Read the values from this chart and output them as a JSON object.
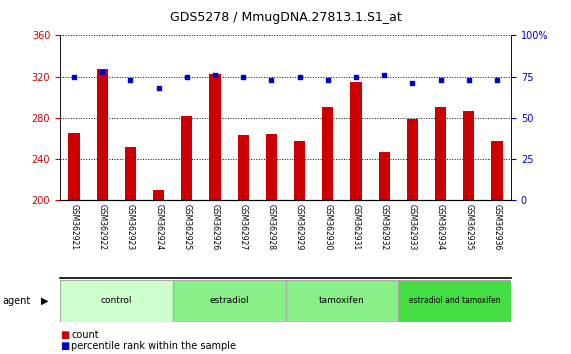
{
  "title": "GDS5278 / MmugDNA.27813.1.S1_at",
  "samples": [
    "GSM362921",
    "GSM362922",
    "GSM362923",
    "GSM362924",
    "GSM362925",
    "GSM362926",
    "GSM362927",
    "GSM362928",
    "GSM362929",
    "GSM362930",
    "GSM362931",
    "GSM362932",
    "GSM362933",
    "GSM362934",
    "GSM362935",
    "GSM362936"
  ],
  "counts": [
    265,
    327,
    252,
    210,
    282,
    322,
    263,
    264,
    257,
    290,
    315,
    247,
    279,
    290,
    287,
    257
  ],
  "percentiles": [
    75,
    78,
    73,
    68,
    75,
    76,
    75,
    73,
    75,
    73,
    75,
    76,
    71,
    73,
    73,
    73
  ],
  "bar_color": "#cc0000",
  "dot_color": "#0000cc",
  "ylim_left": [
    200,
    360
  ],
  "ylim_right": [
    0,
    100
  ],
  "yticks_left": [
    200,
    240,
    280,
    320,
    360
  ],
  "yticks_right": [
    0,
    25,
    50,
    75,
    100
  ],
  "groups": [
    {
      "label": "control",
      "start": 0,
      "end": 4,
      "color": "#ccffcc"
    },
    {
      "label": "estradiol",
      "start": 4,
      "end": 8,
      "color": "#88ee88"
    },
    {
      "label": "tamoxifen",
      "start": 8,
      "end": 12,
      "color": "#88ee88"
    },
    {
      "label": "estradiol and tamoxifen",
      "start": 12,
      "end": 16,
      "color": "#44dd44"
    }
  ],
  "agent_label": "agent",
  "legend_count_label": "count",
  "legend_percentile_label": "percentile rank within the sample",
  "background_color": "#ffffff",
  "plot_bg_color": "#ffffff",
  "sample_bg_color": "#c8c8c8",
  "grid_color": "#000000",
  "left_tick_color": "#cc0000",
  "right_tick_color": "#0000cc",
  "bar_width": 0.4
}
